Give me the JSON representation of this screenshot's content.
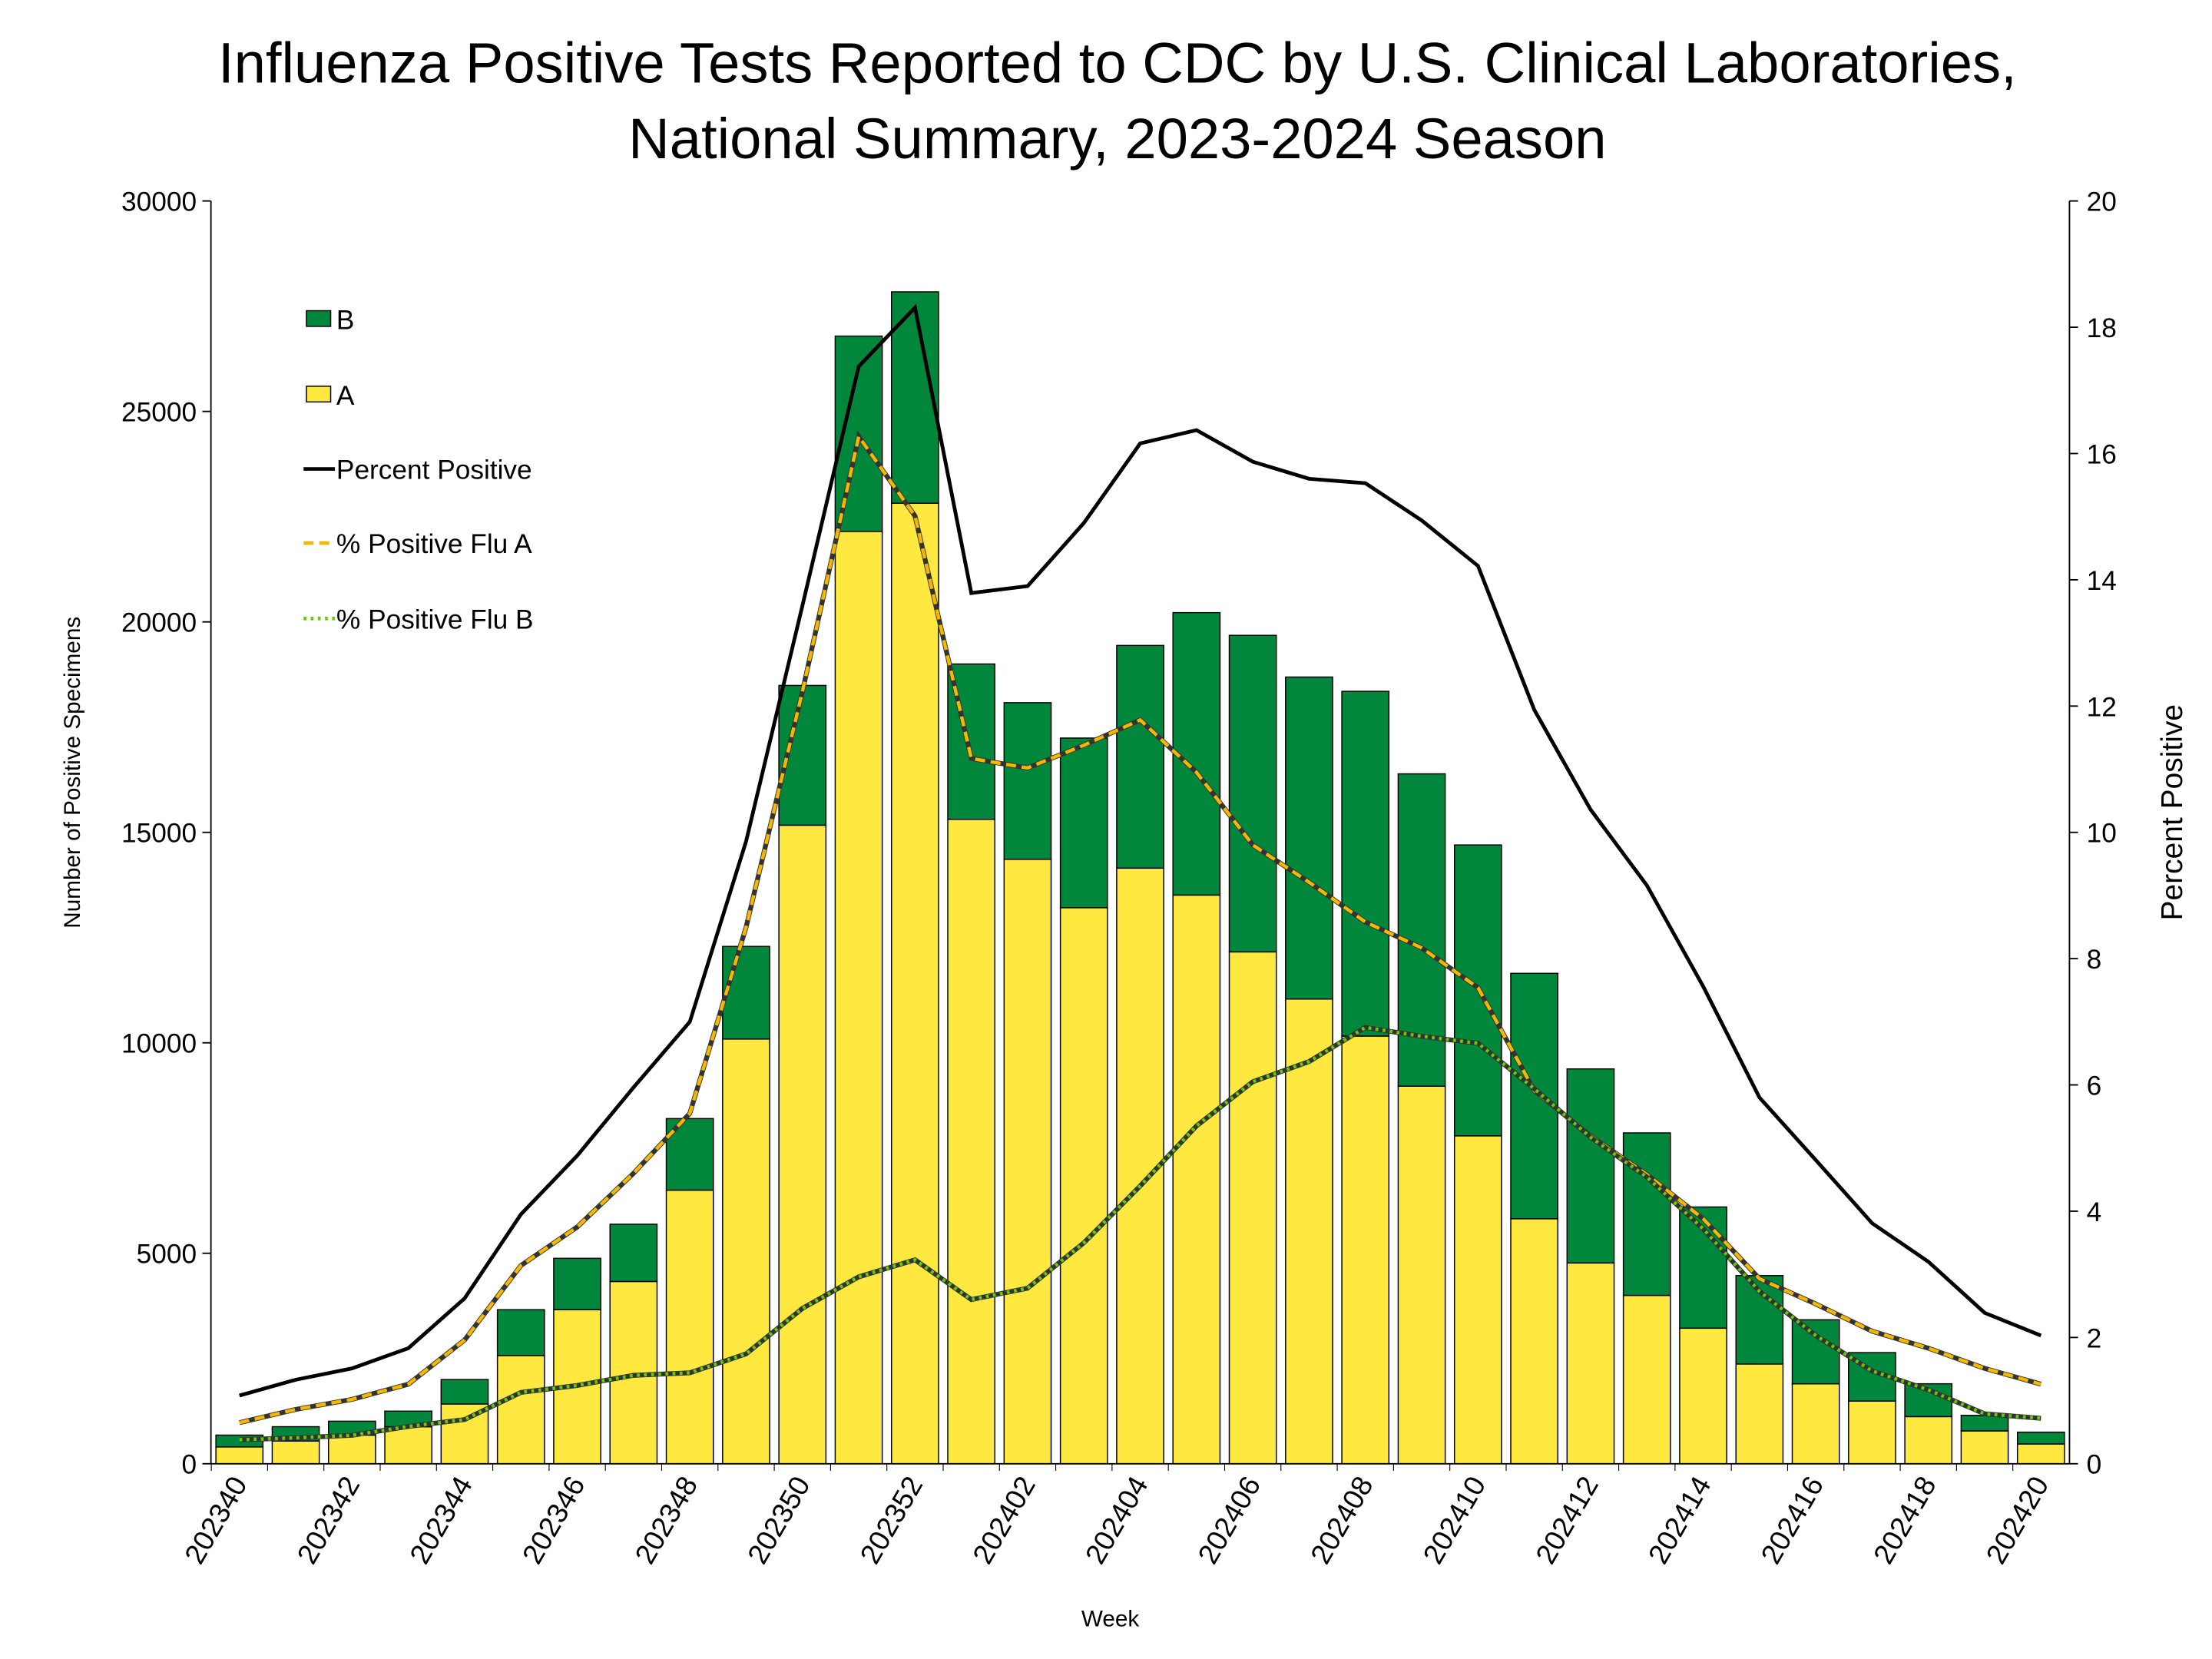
{
  "chart_data": {
    "type": "bar+line",
    "title_lines": [
      "Influenza Positive Tests Reported to CDC by U.S. Clinical Laboratories,",
      "National Summary, 2023-2024 Season"
    ],
    "xlabel": "Week",
    "ylabel_left": "Number of Positive Specimens",
    "ylabel_right": "Percent Positive",
    "ylim_left": [
      0,
      30000
    ],
    "ylim_right": [
      0,
      20
    ],
    "yticks_left": [
      "0",
      "5000",
      "10000",
      "15000",
      "20000",
      "25000",
      "30000"
    ],
    "yticks_right": [
      "0",
      "2",
      "4",
      "6",
      "8",
      "10",
      "12",
      "14",
      "16",
      "18",
      "20"
    ],
    "grid": false,
    "legend_placement": "top-left",
    "weeks": [
      "202340",
      "202341",
      "202342",
      "202343",
      "202344",
      "202345",
      "202346",
      "202347",
      "202348",
      "202349",
      "202350",
      "202351",
      "202352",
      "202401",
      "202402",
      "202403",
      "202404",
      "202405",
      "202406",
      "202407",
      "202408",
      "202409",
      "202410",
      "202411",
      "202412",
      "202413",
      "202414",
      "202415",
      "202416",
      "202417",
      "202418",
      "202419",
      "202420"
    ],
    "x_tick_labels": [
      "202340",
      "202342",
      "202344",
      "202346",
      "202348",
      "202350",
      "202352",
      "202402",
      "202404",
      "202406",
      "202408",
      "202410",
      "202412",
      "202414",
      "202416",
      "202418",
      "202420"
    ],
    "bar_series": [
      {
        "name": "A",
        "color": "#FFE83F",
        "values": [
          400,
          540,
          680,
          880,
          1420,
          2570,
          3660,
          4330,
          6500,
          10090,
          15170,
          22150,
          22820,
          15310,
          14360,
          13210,
          14150,
          13510,
          12160,
          11040,
          10160,
          8970,
          7790,
          5820,
          4770,
          4000,
          3220,
          2370,
          1900,
          1490,
          1120,
          780,
          470
        ]
      },
      {
        "name": "B",
        "color": "#00873C",
        "values": [
          280,
          340,
          330,
          370,
          580,
          1090,
          1220,
          1360,
          1700,
          2200,
          3320,
          4640,
          5020,
          3690,
          3720,
          4030,
          5290,
          6710,
          7520,
          7650,
          8190,
          7420,
          6910,
          5830,
          4610,
          3860,
          2880,
          2100,
          1520,
          1150,
          780,
          370,
          280
        ]
      }
    ],
    "line_series": [
      {
        "name": "Percent Positive",
        "color": "#000000",
        "style": "solid",
        "values": [
          1.08,
          1.33,
          1.51,
          1.83,
          2.62,
          3.95,
          4.88,
          5.96,
          7.0,
          9.86,
          13.59,
          17.38,
          18.31,
          13.79,
          13.9,
          14.9,
          16.16,
          16.37,
          15.87,
          15.6,
          15.53,
          14.94,
          14.22,
          11.94,
          10.36,
          9.16,
          7.56,
          5.8,
          4.81,
          3.81,
          3.2,
          2.39,
          2.03
        ]
      },
      {
        "name": "% Positive Flu A",
        "color": "#F5B800",
        "style": "dashed",
        "values": [
          0.65,
          0.86,
          1.02,
          1.26,
          1.96,
          3.14,
          3.75,
          4.6,
          5.55,
          8.5,
          12.23,
          16.27,
          15.01,
          11.17,
          11.02,
          11.38,
          11.78,
          10.95,
          9.8,
          9.21,
          8.58,
          8.17,
          7.54,
          5.91,
          5.19,
          4.58,
          3.88,
          2.93,
          2.53,
          2.1,
          1.83,
          1.51,
          1.26
        ]
      },
      {
        "name": "% Positive Flu B",
        "color": "#66CC00",
        "style": "dotted",
        "values": [
          0.38,
          0.41,
          0.45,
          0.59,
          0.7,
          1.13,
          1.24,
          1.4,
          1.44,
          1.74,
          2.46,
          2.96,
          3.23,
          2.6,
          2.78,
          3.5,
          4.4,
          5.35,
          6.05,
          6.37,
          6.91,
          6.77,
          6.66,
          5.94,
          5.17,
          4.54,
          3.72,
          2.73,
          2.03,
          1.47,
          1.17,
          0.79,
          0.72
        ]
      }
    ],
    "legend": [
      "B",
      "A",
      "Percent Positive",
      "% Positive Flu A",
      "% Positive Flu B"
    ]
  }
}
